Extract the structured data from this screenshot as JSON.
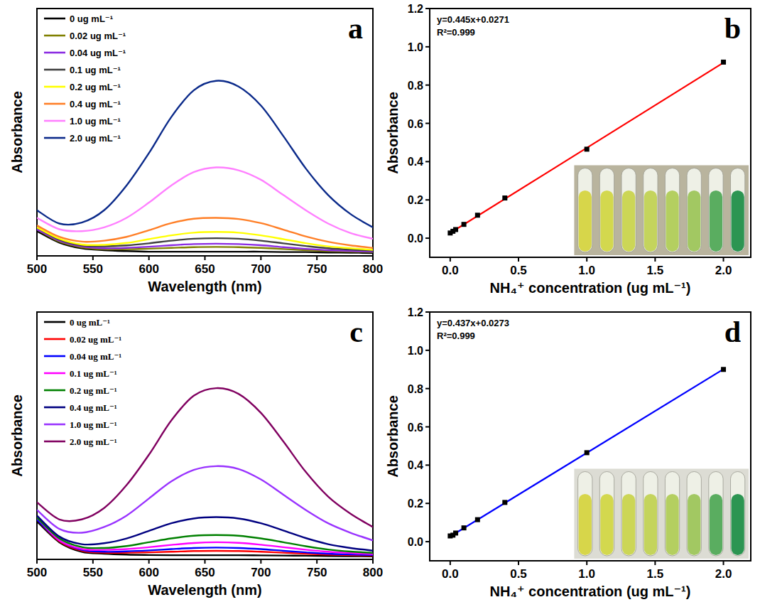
{
  "chart_data": [
    {
      "type": "line",
      "panel_label": "a",
      "x_label": "Wavelength (nm)",
      "y_label": "Absorbance",
      "x": [
        500,
        520,
        540,
        560,
        580,
        600,
        620,
        640,
        660,
        680,
        700,
        720,
        740,
        760,
        780,
        800
      ],
      "xlim": [
        500,
        800
      ],
      "xticks": [
        500,
        550,
        600,
        650,
        700,
        750,
        800
      ],
      "ylim": [
        0,
        1.3
      ],
      "tick_labels": "x",
      "legend": "upper left",
      "series": [
        {
          "name": "0 ug mL⁻¹",
          "color": "#000000",
          "values": [
            0.13,
            0.07,
            0.04,
            0.03,
            0.025,
            0.022,
            0.022,
            0.022,
            0.022,
            0.022,
            0.022,
            0.02,
            0.02,
            0.018,
            0.017,
            0.015
          ]
        },
        {
          "name": "0.02 ug mL⁻¹",
          "color": "#808000",
          "values": [
            0.14,
            0.075,
            0.045,
            0.035,
            0.035,
            0.038,
            0.042,
            0.046,
            0.047,
            0.046,
            0.042,
            0.036,
            0.03,
            0.025,
            0.022,
            0.02
          ]
        },
        {
          "name": "0.04 ug mL⁻¹",
          "color": "#8a2be2",
          "values": [
            0.14,
            0.08,
            0.05,
            0.04,
            0.042,
            0.048,
            0.056,
            0.062,
            0.064,
            0.062,
            0.056,
            0.046,
            0.037,
            0.03,
            0.026,
            0.022
          ]
        },
        {
          "name": "0.1 ug mL⁻¹",
          "color": "#404040",
          "values": [
            0.15,
            0.085,
            0.055,
            0.05,
            0.055,
            0.066,
            0.08,
            0.09,
            0.093,
            0.09,
            0.08,
            0.066,
            0.052,
            0.04,
            0.033,
            0.028
          ]
        },
        {
          "name": "0.2 ug mL⁻¹",
          "color": "#ffff00",
          "values": [
            0.15,
            0.09,
            0.06,
            0.058,
            0.068,
            0.088,
            0.108,
            0.122,
            0.126,
            0.122,
            0.108,
            0.088,
            0.067,
            0.05,
            0.04,
            0.032
          ]
        },
        {
          "name": "0.4 ug mL⁻¹",
          "color": "#ff7f27",
          "values": [
            0.16,
            0.1,
            0.075,
            0.08,
            0.1,
            0.135,
            0.172,
            0.195,
            0.2,
            0.194,
            0.172,
            0.138,
            0.102,
            0.074,
            0.055,
            0.042
          ]
        },
        {
          "name": "1.0 ug mL⁻¹",
          "color": "#ff80ff",
          "values": [
            0.2,
            0.14,
            0.13,
            0.15,
            0.2,
            0.28,
            0.37,
            0.44,
            0.465,
            0.45,
            0.4,
            0.32,
            0.24,
            0.17,
            0.12,
            0.09
          ]
        },
        {
          "name": "2.0 ug mL⁻¹",
          "color": "#0b2a8a",
          "values": [
            0.24,
            0.17,
            0.175,
            0.24,
            0.37,
            0.54,
            0.73,
            0.87,
            0.92,
            0.89,
            0.79,
            0.63,
            0.46,
            0.32,
            0.22,
            0.15
          ]
        }
      ]
    },
    {
      "type": "scatter",
      "panel_label": "b",
      "x_label": "NH₄⁺ concentration (ug mL⁻¹)",
      "y_label": "Absorbance",
      "annotations": [
        "y=0.445x+0.0271",
        "R²=0.999"
      ],
      "xlim": [
        -0.15,
        2.2
      ],
      "xticks": [
        {
          "value": 0,
          "label": "0.0"
        },
        {
          "value": 0.5,
          "label": "0.5"
        },
        {
          "value": 1,
          "label": "1.0"
        },
        {
          "value": 1.5,
          "label": "1.5"
        },
        {
          "value": 2,
          "label": "2.0"
        }
      ],
      "ylim": [
        -0.1,
        1.2
      ],
      "yticks": [
        {
          "value": 0,
          "label": "0.0"
        },
        {
          "value": 0.2,
          "label": "0.2"
        },
        {
          "value": 0.4,
          "label": "0.4"
        },
        {
          "value": 0.6,
          "label": "0.6"
        },
        {
          "value": 0.8,
          "label": "0.8"
        },
        {
          "value": 1,
          "label": "1.0"
        },
        {
          "value": 1.2,
          "label": "1.2"
        }
      ],
      "series": [
        {
          "type": "line",
          "color": "#ff0000",
          "x": [
            0,
            2
          ],
          "values": [
            0.0271,
            0.9171
          ]
        },
        {
          "type": "scatter",
          "marker": "square",
          "color": "#000000",
          "x": [
            0,
            0.02,
            0.04,
            0.1,
            0.2,
            0.4,
            1.0,
            2.0
          ],
          "values": [
            0.027,
            0.036,
            0.045,
            0.072,
            0.12,
            0.21,
            0.465,
            0.92
          ]
        }
      ]
    },
    {
      "type": "line",
      "panel_label": "c",
      "x_label": "Wavelength (nm)",
      "y_label": "Absorbance",
      "x": [
        500,
        520,
        540,
        560,
        580,
        600,
        620,
        640,
        660,
        680,
        700,
        720,
        740,
        760,
        780,
        800
      ],
      "xlim": [
        500,
        800
      ],
      "xticks": [
        500,
        550,
        600,
        650,
        700,
        750,
        800
      ],
      "ylim": [
        0,
        1.3
      ],
      "tick_labels": "x",
      "legend": "upper left",
      "series": [
        {
          "name": "0 ug mL⁻¹",
          "color": "#000000",
          "values": [
            0.2,
            0.09,
            0.04,
            0.03,
            0.025,
            0.023,
            0.022,
            0.022,
            0.022,
            0.022,
            0.021,
            0.02,
            0.019,
            0.018,
            0.017,
            0.016
          ]
        },
        {
          "name": "0.02 ug mL⁻¹",
          "color": "#ff0000",
          "values": [
            0.21,
            0.095,
            0.045,
            0.035,
            0.035,
            0.037,
            0.04,
            0.044,
            0.045,
            0.044,
            0.04,
            0.035,
            0.03,
            0.025,
            0.022,
            0.02
          ]
        },
        {
          "name": "0.04 ug mL⁻¹",
          "color": "#0000ff",
          "values": [
            0.21,
            0.1,
            0.05,
            0.04,
            0.042,
            0.047,
            0.054,
            0.06,
            0.062,
            0.06,
            0.054,
            0.045,
            0.037,
            0.03,
            0.026,
            0.023
          ]
        },
        {
          "name": "0.1 ug mL⁻¹",
          "color": "#ff00ff",
          "values": [
            0.22,
            0.1,
            0.055,
            0.05,
            0.054,
            0.064,
            0.076,
            0.086,
            0.09,
            0.087,
            0.077,
            0.064,
            0.051,
            0.04,
            0.033,
            0.028
          ]
        },
        {
          "name": "0.2 ug mL⁻¹",
          "color": "#008000",
          "values": [
            0.22,
            0.11,
            0.065,
            0.06,
            0.07,
            0.09,
            0.11,
            0.124,
            0.128,
            0.124,
            0.11,
            0.09,
            0.069,
            0.052,
            0.041,
            0.034
          ]
        },
        {
          "name": "0.4 ug mL⁻¹",
          "color": "#000080",
          "values": [
            0.23,
            0.12,
            0.08,
            0.085,
            0.11,
            0.15,
            0.19,
            0.215,
            0.222,
            0.215,
            0.19,
            0.152,
            0.112,
            0.08,
            0.06,
            0.046
          ]
        },
        {
          "name": "1.0 ug mL⁻¹",
          "color": "#9933ff",
          "values": [
            0.26,
            0.16,
            0.14,
            0.17,
            0.23,
            0.32,
            0.41,
            0.47,
            0.49,
            0.475,
            0.42,
            0.34,
            0.26,
            0.19,
            0.14,
            0.1
          ]
        },
        {
          "name": "2.0 ug mL⁻¹",
          "color": "#800060",
          "values": [
            0.3,
            0.21,
            0.21,
            0.27,
            0.39,
            0.55,
            0.73,
            0.86,
            0.9,
            0.87,
            0.77,
            0.62,
            0.46,
            0.33,
            0.24,
            0.17
          ]
        }
      ]
    },
    {
      "type": "scatter",
      "panel_label": "d",
      "x_label": "NH₄⁺ concentration (ug mL⁻¹)",
      "y_label": "Absorbance",
      "annotations": [
        "y=0.437x+0.0273",
        "R²=0.999"
      ],
      "xlim": [
        -0.15,
        2.2
      ],
      "xticks": [
        {
          "value": 0,
          "label": "0.0"
        },
        {
          "value": 0.5,
          "label": "0.5"
        },
        {
          "value": 1,
          "label": "1.0"
        },
        {
          "value": 1.5,
          "label": "1.5"
        },
        {
          "value": 2,
          "label": "2.0"
        }
      ],
      "ylim": [
        -0.1,
        1.2
      ],
      "yticks": [
        {
          "value": 0,
          "label": "0.0"
        },
        {
          "value": 0.2,
          "label": "0.2"
        },
        {
          "value": 0.4,
          "label": "0.4"
        },
        {
          "value": 0.6,
          "label": "0.6"
        },
        {
          "value": 0.8,
          "label": "0.8"
        },
        {
          "value": 1,
          "label": "1.0"
        },
        {
          "value": 1.2,
          "label": "1.2"
        }
      ],
      "series": [
        {
          "type": "line",
          "color": "#0000ff",
          "x": [
            0,
            2
          ],
          "values": [
            0.0273,
            0.9013
          ]
        },
        {
          "type": "scatter",
          "marker": "square",
          "color": "#000000",
          "x": [
            0,
            0.02,
            0.04,
            0.1,
            0.2,
            0.4,
            1.0,
            2.0
          ],
          "values": [
            0.03,
            0.034,
            0.045,
            0.072,
            0.115,
            0.205,
            0.465,
            0.9
          ]
        }
      ]
    }
  ]
}
